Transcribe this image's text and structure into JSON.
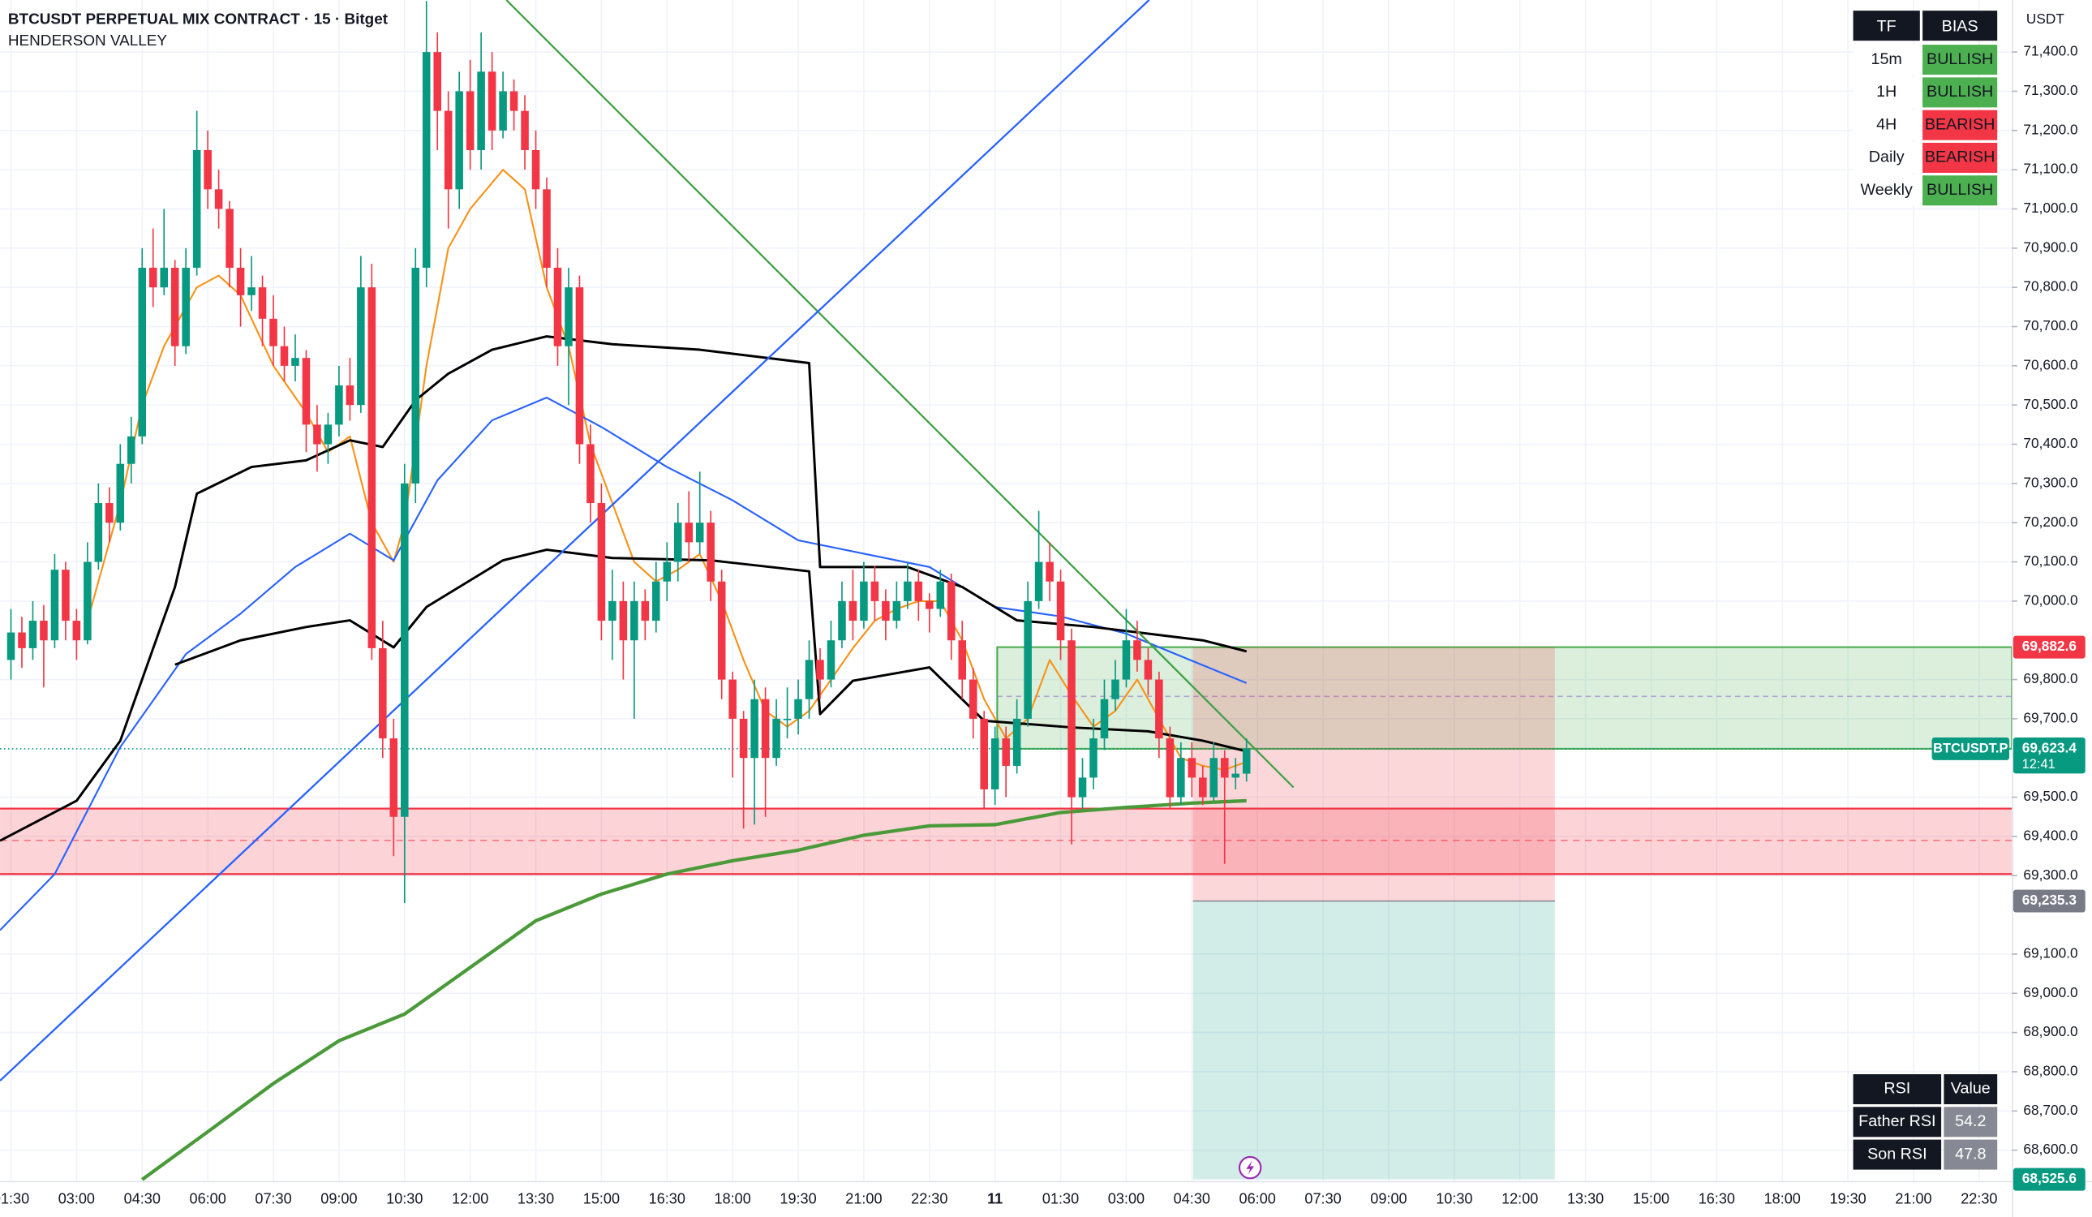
{
  "chart_data": {
    "type": "candlestick",
    "title": "BTCUSDT PERPETUAL MIX CONTRACT · 15 · Bitget",
    "subtitle": "HENDERSON VALLEY",
    "currency": "USDT",
    "xlim": [
      -1,
      183
    ],
    "ylim": [
      68521.5,
      71532.7
    ],
    "grid": true,
    "up_color": "#089981",
    "down_color": "#f23645",
    "xticks": [
      {
        "value": 0,
        "label": "01:30"
      },
      {
        "value": 6,
        "label": "03:00"
      },
      {
        "value": 12,
        "label": "04:30"
      },
      {
        "value": 18,
        "label": "06:00"
      },
      {
        "value": 24,
        "label": "07:30"
      },
      {
        "value": 30,
        "label": "09:00"
      },
      {
        "value": 36,
        "label": "10:30"
      },
      {
        "value": 42,
        "label": "12:00"
      },
      {
        "value": 48,
        "label": "13:30"
      },
      {
        "value": 54,
        "label": "15:00"
      },
      {
        "value": 60,
        "label": "16:30"
      },
      {
        "value": 66,
        "label": "18:00"
      },
      {
        "value": 72,
        "label": "19:30"
      },
      {
        "value": 78,
        "label": "21:00"
      },
      {
        "value": 84,
        "label": "22:30"
      },
      {
        "value": 90,
        "label": "11"
      },
      {
        "value": 96,
        "label": "01:30"
      },
      {
        "value": 102,
        "label": "03:00"
      },
      {
        "value": 108,
        "label": "04:30"
      },
      {
        "value": 114,
        "label": "06:00"
      },
      {
        "value": 120,
        "label": "07:30"
      },
      {
        "value": 126,
        "label": "09:00"
      },
      {
        "value": 132,
        "label": "10:30"
      },
      {
        "value": 138,
        "label": "12:00"
      },
      {
        "value": 144,
        "label": "13:30"
      },
      {
        "value": 150,
        "label": "15:00"
      },
      {
        "value": 156,
        "label": "16:30"
      },
      {
        "value": 162,
        "label": "18:00"
      },
      {
        "value": 168,
        "label": "19:30"
      },
      {
        "value": 174,
        "label": "21:00"
      },
      {
        "value": 180,
        "label": "22:30"
      }
    ],
    "yticks": [
      {
        "value": 71400,
        "label": "71,400.0"
      },
      {
        "value": 71300,
        "label": "71,300.0"
      },
      {
        "value": 71200,
        "label": "71,200.0"
      },
      {
        "value": 71100,
        "label": "71,100.0"
      },
      {
        "value": 71000,
        "label": "71,000.0"
      },
      {
        "value": 70900,
        "label": "70,900.0"
      },
      {
        "value": 70800,
        "label": "70,800.0"
      },
      {
        "value": 70700,
        "label": "70,700.0"
      },
      {
        "value": 70600,
        "label": "70,600.0"
      },
      {
        "value": 70500,
        "label": "70,500.0"
      },
      {
        "value": 70400,
        "label": "70,400.0"
      },
      {
        "value": 70300,
        "label": "70,300.0"
      },
      {
        "value": 70200,
        "label": "70,200.0"
      },
      {
        "value": 70100,
        "label": "70,100.0"
      },
      {
        "value": 70000,
        "label": "70,000.0"
      },
      {
        "value": 69800,
        "label": "69,800.0"
      },
      {
        "value": 69700,
        "label": "69,700.0"
      },
      {
        "value": 69500,
        "label": "69,500.0"
      },
      {
        "value": 69400,
        "label": "69,400.0"
      },
      {
        "value": 69300,
        "label": "69,300.0"
      },
      {
        "value": 69100,
        "label": "69,100.0"
      },
      {
        "value": 69000,
        "label": "69,000.0"
      },
      {
        "value": 68900,
        "label": "68,900.0"
      },
      {
        "value": 68800,
        "label": "68,800.0"
      },
      {
        "value": 68700,
        "label": "68,700.0"
      },
      {
        "value": 68600,
        "label": "68,600.0"
      }
    ],
    "candles": [
      [
        69850,
        69980,
        69800,
        69920
      ],
      [
        69920,
        69960,
        69830,
        69880
      ],
      [
        69880,
        70000,
        69850,
        69950
      ],
      [
        69950,
        69990,
        69780,
        69900
      ],
      [
        69900,
        70120,
        69880,
        70080
      ],
      [
        70080,
        70100,
        69900,
        69950
      ],
      [
        69950,
        69980,
        69850,
        69900
      ],
      [
        69900,
        70150,
        69890,
        70100
      ],
      [
        70100,
        70300,
        70080,
        70250
      ],
      [
        70250,
        70290,
        70150,
        70200
      ],
      [
        70200,
        70400,
        70180,
        70350
      ],
      [
        70350,
        70470,
        70300,
        70420
      ],
      [
        70420,
        70900,
        70400,
        70850
      ],
      [
        70850,
        70950,
        70750,
        70800
      ],
      [
        70800,
        71000,
        70780,
        70850
      ],
      [
        70850,
        70870,
        70600,
        70650
      ],
      [
        70650,
        70900,
        70630,
        70850
      ],
      [
        70850,
        71250,
        70830,
        71150
      ],
      [
        71150,
        71200,
        71000,
        71050
      ],
      [
        71050,
        71100,
        70950,
        71000
      ],
      [
        71000,
        71020,
        70800,
        70850
      ],
      [
        70850,
        70900,
        70700,
        70780
      ],
      [
        70780,
        70880,
        70740,
        70800
      ],
      [
        70800,
        70830,
        70650,
        70720
      ],
      [
        70720,
        70780,
        70600,
        70650
      ],
      [
        70650,
        70700,
        70560,
        70600
      ],
      [
        70600,
        70680,
        70560,
        70620
      ],
      [
        70620,
        70640,
        70380,
        70450
      ],
      [
        70450,
        70500,
        70330,
        70400
      ],
      [
        70400,
        70480,
        70350,
        70450
      ],
      [
        70450,
        70600,
        70420,
        70550
      ],
      [
        70550,
        70620,
        70460,
        70500
      ],
      [
        70500,
        70880,
        70480,
        70800
      ],
      [
        70800,
        70860,
        69850,
        69880
      ],
      [
        69880,
        69950,
        69600,
        69650
      ],
      [
        69650,
        69700,
        69350,
        69450
      ],
      [
        69450,
        70350,
        69230,
        70300
      ],
      [
        70300,
        70900,
        70250,
        70850
      ],
      [
        70850,
        71530,
        70800,
        71400
      ],
      [
        71400,
        71450,
        71150,
        71250
      ],
      [
        71250,
        71300,
        70950,
        71050
      ],
      [
        71050,
        71350,
        71000,
        71300
      ],
      [
        71300,
        71380,
        71100,
        71150
      ],
      [
        71150,
        71450,
        71100,
        71350
      ],
      [
        71350,
        71400,
        71150,
        71200
      ],
      [
        71200,
        71350,
        71180,
        71300
      ],
      [
        71300,
        71330,
        71200,
        71250
      ],
      [
        71250,
        71290,
        71100,
        71150
      ],
      [
        71150,
        71200,
        71000,
        71050
      ],
      [
        71050,
        71080,
        70800,
        70850
      ],
      [
        70850,
        70900,
        70600,
        70650
      ],
      [
        70650,
        70850,
        70500,
        70800
      ],
      [
        70800,
        70830,
        70350,
        70400
      ],
      [
        70400,
        70450,
        70200,
        70250
      ],
      [
        70250,
        70300,
        69900,
        69950
      ],
      [
        69950,
        70080,
        69850,
        70000
      ],
      [
        70000,
        70050,
        69800,
        69900
      ],
      [
        69900,
        70050,
        69700,
        70000
      ],
      [
        70000,
        70030,
        69900,
        69950
      ],
      [
        69950,
        70100,
        69920,
        70050
      ],
      [
        70050,
        70150,
        70000,
        70100
      ],
      [
        70100,
        70250,
        70050,
        70200
      ],
      [
        70200,
        70280,
        70100,
        70150
      ],
      [
        70150,
        70330,
        70120,
        70200
      ],
      [
        70200,
        70230,
        70000,
        70050
      ],
      [
        70050,
        70080,
        69750,
        69800
      ],
      [
        69800,
        69820,
        69550,
        69700
      ],
      [
        69700,
        69720,
        69420,
        69600
      ],
      [
        69600,
        69800,
        69430,
        69750
      ],
      [
        69750,
        69780,
        69450,
        69600
      ],
      [
        69600,
        69750,
        69580,
        69700
      ],
      [
        69700,
        69780,
        69650,
        69700
      ],
      [
        69700,
        69800,
        69660,
        69750
      ],
      [
        69750,
        69900,
        69700,
        69850
      ],
      [
        69850,
        69880,
        69750,
        69800
      ],
      [
        69800,
        69950,
        69780,
        69900
      ],
      [
        69900,
        70050,
        69880,
        70000
      ],
      [
        70000,
        70080,
        69900,
        69950
      ],
      [
        69950,
        70100,
        69930,
        70050
      ],
      [
        70050,
        70090,
        69950,
        70000
      ],
      [
        70000,
        70030,
        69900,
        69950
      ],
      [
        69950,
        70050,
        69930,
        70000
      ],
      [
        70000,
        70100,
        69980,
        70050
      ],
      [
        70050,
        70080,
        69950,
        70000
      ],
      [
        70000,
        70020,
        69920,
        69980
      ],
      [
        69980,
        70080,
        69960,
        70050
      ],
      [
        70050,
        70070,
        69850,
        69900
      ],
      [
        69900,
        69950,
        69750,
        69800
      ],
      [
        69800,
        69830,
        69650,
        69700
      ],
      [
        69700,
        69720,
        69470,
        69520
      ],
      [
        69520,
        69680,
        69480,
        69650
      ],
      [
        69650,
        69680,
        69500,
        69580
      ],
      [
        69580,
        69750,
        69560,
        69700
      ],
      [
        69700,
        70050,
        69680,
        70000
      ],
      [
        70000,
        70230,
        69980,
        70100
      ],
      [
        70100,
        70150,
        70000,
        70050
      ],
      [
        70050,
        70080,
        69850,
        69900
      ],
      [
        69900,
        69930,
        69380,
        69500
      ],
      [
        69500,
        69600,
        69470,
        69550
      ],
      [
        69550,
        69700,
        69520,
        69650
      ],
      [
        69650,
        69800,
        69620,
        69750
      ],
      [
        69750,
        69850,
        69720,
        69800
      ],
      [
        69800,
        69980,
        69780,
        69900
      ],
      [
        69900,
        69950,
        69820,
        69850
      ],
      [
        69850,
        69880,
        69760,
        69800
      ],
      [
        69800,
        69820,
        69600,
        69650
      ],
      [
        69650,
        69680,
        69470,
        69500
      ],
      [
        69500,
        69640,
        69480,
        69600
      ],
      [
        69600,
        69640,
        69500,
        69550
      ],
      [
        69550,
        69580,
        69480,
        69500
      ],
      [
        69500,
        69640,
        69490,
        69600
      ],
      [
        69600,
        69620,
        69330,
        69550
      ],
      [
        69550,
        69600,
        69520,
        69560
      ],
      [
        69560,
        69650,
        69540,
        69623.4
      ]
    ],
    "series": [
      {
        "color": "#f7931a",
        "width": 1.3,
        "x": [
          7,
          10,
          12,
          14,
          17,
          19,
          21,
          24,
          27,
          29,
          31,
          33,
          35,
          36,
          38,
          40,
          42,
          45,
          47,
          49,
          51,
          53,
          55,
          57,
          59,
          61,
          63,
          65,
          67,
          69,
          71,
          73,
          75,
          77,
          79,
          81,
          83,
          85,
          87,
          89,
          91,
          93,
          95,
          97,
          99,
          101,
          103,
          105,
          107,
          109,
          111,
          113
        ],
        "values": [
          69950,
          70250,
          70500,
          70650,
          70800,
          70830,
          70780,
          70600,
          70480,
          70380,
          70420,
          70200,
          70100,
          70200,
          70600,
          70900,
          71000,
          71100,
          71050,
          70800,
          70650,
          70400,
          70250,
          70100,
          70050,
          70080,
          70120,
          70000,
          69850,
          69720,
          69680,
          69720,
          69800,
          69880,
          69950,
          69980,
          70000,
          70000,
          69900,
          69750,
          69650,
          69700,
          69850,
          69760,
          69680,
          69720,
          69800,
          69700,
          69600,
          69580,
          69570,
          69590
        ]
      },
      {
        "color": "#2962ff",
        "width": 1.3,
        "x": [
          -1,
          4,
          10,
          16,
          21,
          26,
          31,
          35,
          39,
          44,
          49,
          54,
          60,
          66,
          72,
          78,
          84,
          90,
          96,
          102,
          108,
          113
        ],
        "values": [
          69161,
          69304,
          69628,
          69865,
          69968,
          70087,
          70172,
          70104,
          70308,
          70461,
          70519,
          70444,
          70342,
          70257,
          70155,
          70121,
          70087,
          69985,
          69961,
          69917,
          69848,
          69791
        ]
      },
      {
        "color": "#4a9a3a",
        "width": 2.6,
        "x": [
          12,
          18,
          24,
          30,
          36,
          42,
          48,
          54,
          60,
          66,
          72,
          78,
          84,
          90,
          96,
          102,
          108,
          113
        ],
        "values": [
          68525,
          68647,
          68770,
          68879,
          68947,
          69066,
          69185,
          69253,
          69304,
          69338,
          69365,
          69403,
          69427,
          69430,
          69461,
          69474,
          69485,
          69491
        ]
      },
      {
        "color": "#000000",
        "width": 1.8,
        "x": [
          -1,
          6,
          10,
          15,
          17,
          22,
          27,
          31,
          34,
          37,
          40,
          44,
          49,
          55,
          63,
          73,
          74,
          82,
          87,
          92,
          99,
          109,
          113
        ],
        "values": [
          69389,
          69491,
          69644,
          70036,
          70274,
          70342,
          70359,
          70410,
          70393,
          70512,
          70580,
          70641,
          70675,
          70655,
          70641,
          70607,
          70087,
          70087,
          70036,
          69951,
          69934,
          69900,
          69872
        ]
      },
      {
        "color": "#000000",
        "width": 1.8,
        "x": [
          15,
          21,
          27,
          31,
          35,
          38,
          45,
          49,
          55,
          64,
          73,
          74,
          77,
          84,
          89,
          97,
          104,
          109,
          113
        ],
        "values": [
          69838,
          69900,
          69934,
          69951,
          69882,
          69985,
          70104,
          70131,
          70110,
          70104,
          70076,
          69712,
          69797,
          69831,
          69695,
          69678,
          69668,
          69644,
          69617
        ]
      }
    ],
    "trendlines": [
      {
        "color": "#43a047",
        "x": [
          45.3,
          117.3
        ],
        "values": [
          71533,
          69525
        ]
      },
      {
        "color": "#2962ff",
        "x": [
          -1,
          104.1
        ],
        "values": [
          68777,
          71533
        ]
      }
    ],
    "support_zone": {
      "x": [
        -1,
        183
      ],
      "top": 69471,
      "bottom": 69304,
      "mid": 69390,
      "color": "#f23645"
    },
    "green_zone": {
      "x": [
        90.2,
        183
      ],
      "top": 69882.6,
      "bottom": 69623.4,
      "dashed": 69757,
      "color": "#4caf50"
    },
    "position": {
      "x": [
        108.1,
        141.2
      ],
      "stop": 69882.6,
      "entry": 69235.3,
      "target": 68525.6
    },
    "symbol_label": "BTCUSDT.P",
    "price_labels": [
      {
        "value": 69882.6,
        "label": "69,882.6",
        "color": "#f23645"
      },
      {
        "value": 69623.4,
        "label": "69,623.4",
        "color": "#089981",
        "countdown": "12:41"
      },
      {
        "value": 69235.3,
        "label": "69,235.3",
        "color": "#787b86"
      },
      {
        "value": 68525.6,
        "label": "68,525.6",
        "color": "#089981"
      }
    ],
    "bias_table": {
      "header": [
        "TF",
        "BIAS"
      ],
      "rows": [
        {
          "tf": "15m",
          "bias": "BULLISH",
          "color": "#4caf50"
        },
        {
          "tf": "1H",
          "bias": "BULLISH",
          "color": "#4caf50"
        },
        {
          "tf": "4H",
          "bias": "BEARISH",
          "color": "#f23645"
        },
        {
          "tf": "Daily",
          "bias": "BEARISH",
          "color": "#f23645"
        },
        {
          "tf": "Weekly",
          "bias": "BULLISH",
          "color": "#4caf50"
        }
      ]
    },
    "rsi_table": {
      "header": [
        "RSI",
        "Value"
      ],
      "rows": [
        {
          "name": "Father RSI",
          "value": 54.2
        },
        {
          "name": "Son RSI",
          "value": 47.8
        }
      ]
    }
  }
}
